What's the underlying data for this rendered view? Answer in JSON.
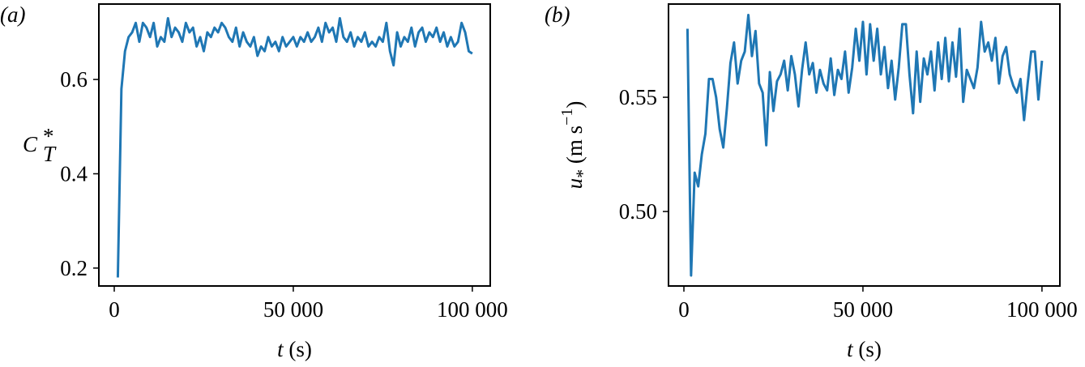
{
  "chart_data": [
    {
      "type": "line",
      "panel_label": "(a)",
      "xlabel": [
        "t",
        " (s)"
      ],
      "ylabel": [
        "C",
        "*",
        "T"
      ],
      "xlim": [
        -4300,
        105000
      ],
      "ylim": [
        0.162,
        0.76
      ],
      "xticks": [
        0,
        {
          "value": 50000,
          "label": "50 000"
        },
        {
          "value": 100000,
          "label": "100 000"
        }
      ],
      "yticks": [
        0.2,
        0.4,
        0.6
      ],
      "x": [
        1000,
        2000,
        3000,
        4000,
        5000,
        6000,
        7000,
        8000,
        9000,
        10000,
        11000,
        12000,
        13000,
        14000,
        15000,
        16000,
        17000,
        18000,
        19000,
        20000,
        21000,
        22000,
        23000,
        24000,
        25000,
        26000,
        27000,
        28000,
        29000,
        30000,
        31000,
        32000,
        33000,
        34000,
        35000,
        36000,
        37000,
        38000,
        39000,
        40000,
        41000,
        42000,
        43000,
        44000,
        45000,
        46000,
        47000,
        48000,
        49000,
        50000,
        51000,
        52000,
        53000,
        54000,
        55000,
        56000,
        57000,
        58000,
        59000,
        60000,
        61000,
        62000,
        63000,
        64000,
        65000,
        66000,
        67000,
        68000,
        69000,
        70000,
        71000,
        72000,
        73000,
        74000,
        75000,
        76000,
        77000,
        78000,
        79000,
        80000,
        81000,
        82000,
        83000,
        84000,
        85000,
        86000,
        87000,
        88000,
        89000,
        90000,
        91000,
        92000,
        93000,
        94000,
        95000,
        96000,
        97000,
        98000,
        99000,
        100000
      ],
      "series": [
        {
          "color": "#1f77b4",
          "values": [
            0.18,
            0.58,
            0.66,
            0.69,
            0.7,
            0.72,
            0.68,
            0.72,
            0.71,
            0.69,
            0.72,
            0.67,
            0.69,
            0.68,
            0.73,
            0.69,
            0.71,
            0.7,
            0.68,
            0.72,
            0.7,
            0.71,
            0.67,
            0.69,
            0.66,
            0.7,
            0.69,
            0.71,
            0.7,
            0.72,
            0.71,
            0.69,
            0.68,
            0.71,
            0.67,
            0.7,
            0.68,
            0.67,
            0.69,
            0.65,
            0.67,
            0.66,
            0.69,
            0.67,
            0.68,
            0.66,
            0.69,
            0.67,
            0.68,
            0.69,
            0.67,
            0.69,
            0.68,
            0.7,
            0.68,
            0.69,
            0.71,
            0.68,
            0.72,
            0.7,
            0.71,
            0.68,
            0.73,
            0.69,
            0.68,
            0.7,
            0.67,
            0.69,
            0.68,
            0.7,
            0.67,
            0.68,
            0.67,
            0.69,
            0.68,
            0.72,
            0.66,
            0.63,
            0.7,
            0.67,
            0.69,
            0.68,
            0.71,
            0.67,
            0.7,
            0.71,
            0.68,
            0.7,
            0.69,
            0.71,
            0.68,
            0.7,
            0.67,
            0.69,
            0.67,
            0.68,
            0.72,
            0.7,
            0.66,
            0.655
          ]
        }
      ]
    },
    {
      "type": "line",
      "panel_label": "(b)",
      "xlabel": [
        "t",
        " (s)"
      ],
      "ylabel": [
        "u",
        "*",
        " (m s",
        "−1",
        ")"
      ],
      "xlim": [
        -4300,
        105000
      ],
      "ylim": [
        0.4674,
        0.5908
      ],
      "xticks": [
        0,
        {
          "value": 50000,
          "label": "50 000"
        },
        {
          "value": 100000,
          "label": "100 000"
        }
      ],
      "yticks": [
        {
          "value": 0.5,
          "label": "0.50"
        },
        0.55
      ],
      "x": [
        1000,
        2000,
        3000,
        4000,
        5000,
        6000,
        7000,
        8000,
        9000,
        10000,
        11000,
        12000,
        13000,
        14000,
        15000,
        16000,
        17000,
        18000,
        19000,
        20000,
        21000,
        22000,
        23000,
        24000,
        25000,
        26000,
        27000,
        28000,
        29000,
        30000,
        31000,
        32000,
        33000,
        34000,
        35000,
        36000,
        37000,
        38000,
        39000,
        40000,
        41000,
        42000,
        43000,
        44000,
        45000,
        46000,
        47000,
        48000,
        49000,
        50000,
        51000,
        52000,
        53000,
        54000,
        55000,
        56000,
        57000,
        58000,
        59000,
        60000,
        61000,
        62000,
        63000,
        64000,
        65000,
        66000,
        67000,
        68000,
        69000,
        70000,
        71000,
        72000,
        73000,
        74000,
        75000,
        76000,
        77000,
        78000,
        79000,
        80000,
        81000,
        82000,
        83000,
        84000,
        85000,
        86000,
        87000,
        88000,
        89000,
        90000,
        91000,
        92000,
        93000,
        94000,
        95000,
        96000,
        97000,
        98000,
        99000,
        100000
      ],
      "series": [
        {
          "color": "#1f77b4",
          "values": [
            0.58,
            0.472,
            0.517,
            0.511,
            0.525,
            0.534,
            0.558,
            0.558,
            0.55,
            0.536,
            0.528,
            0.545,
            0.565,
            0.574,
            0.556,
            0.566,
            0.57,
            0.586,
            0.568,
            0.579,
            0.556,
            0.552,
            0.529,
            0.561,
            0.544,
            0.557,
            0.56,
            0.566,
            0.553,
            0.568,
            0.56,
            0.546,
            0.562,
            0.574,
            0.56,
            0.565,
            0.552,
            0.562,
            0.556,
            0.553,
            0.567,
            0.551,
            0.562,
            0.558,
            0.57,
            0.552,
            0.563,
            0.58,
            0.566,
            0.583,
            0.56,
            0.582,
            0.566,
            0.58,
            0.56,
            0.572,
            0.554,
            0.566,
            0.549,
            0.563,
            0.582,
            0.582,
            0.56,
            0.543,
            0.57,
            0.548,
            0.567,
            0.56,
            0.57,
            0.553,
            0.574,
            0.558,
            0.576,
            0.557,
            0.574,
            0.559,
            0.58,
            0.548,
            0.562,
            0.558,
            0.554,
            0.563,
            0.583,
            0.57,
            0.574,
            0.566,
            0.576,
            0.556,
            0.568,
            0.572,
            0.56,
            0.555,
            0.552,
            0.558,
            0.54,
            0.556,
            0.57,
            0.57,
            0.549,
            0.566
          ]
        }
      ]
    }
  ]
}
